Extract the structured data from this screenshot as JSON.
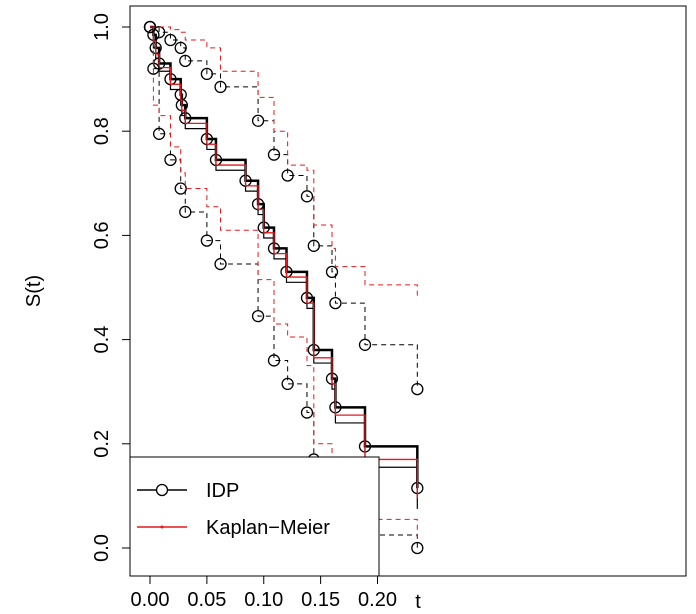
{
  "chart_data": {
    "type": "line",
    "xlabel": "t",
    "ylabel": "S(t)",
    "xlim": [
      0,
      0.235
    ],
    "ylim": [
      0,
      1
    ],
    "x_ticks": [
      "0.00",
      "0.05",
      "0.10",
      "0.15",
      "0.20"
    ],
    "x_tick_values": [
      0,
      0.05,
      0.1,
      0.15,
      0.2
    ],
    "y_ticks": [
      "0.0",
      "0.2",
      "0.4",
      "0.6",
      "0.8",
      "1.0"
    ],
    "y_tick_values": [
      0,
      0.2,
      0.4,
      0.6,
      0.8,
      1.0
    ],
    "legend": {
      "position": "bottom-left",
      "entries": [
        {
          "label": "IDP",
          "color": "#000000",
          "marker": "circle"
        },
        {
          "label": "Kaplan−Meier",
          "color": "#e41a1c",
          "marker": "none"
        }
      ]
    },
    "series": [
      {
        "name": "IDP",
        "role": "estimate",
        "color": "#000000",
        "dashed": false,
        "width": 2.5,
        "markers": true,
        "x": [
          0,
          0.003,
          0.005,
          0.008,
          0.018,
          0.027,
          0.028,
          0.031,
          0.05,
          0.058,
          0.084,
          0.095,
          0.1,
          0.109,
          0.12,
          0.138,
          0.144,
          0.16,
          0.163,
          0.189,
          0.235
        ],
        "y": [
          1.0,
          0.985,
          0.96,
          0.93,
          0.9,
          0.87,
          0.85,
          0.825,
          0.785,
          0.745,
          0.705,
          0.66,
          0.615,
          0.575,
          0.53,
          0.48,
          0.38,
          0.325,
          0.27,
          0.195,
          0.115
        ]
      },
      {
        "name": "IDP",
        "role": "lower",
        "color": "#000000",
        "dashed": false,
        "width": 1.2,
        "markers": false,
        "x": [
          0,
          0.003,
          0.005,
          0.008,
          0.018,
          0.027,
          0.028,
          0.031,
          0.05,
          0.058,
          0.084,
          0.095,
          0.1,
          0.109,
          0.12,
          0.138,
          0.144,
          0.16,
          0.163,
          0.189,
          0.235
        ],
        "y": [
          1.0,
          0.96,
          0.94,
          0.915,
          0.88,
          0.85,
          0.83,
          0.805,
          0.765,
          0.725,
          0.685,
          0.64,
          0.595,
          0.555,
          0.51,
          0.46,
          0.355,
          0.305,
          0.24,
          0.155,
          0.075
        ]
      },
      {
        "name": "Kaplan−Meier",
        "role": "estimate",
        "color": "#e41a1c",
        "dashed": false,
        "width": 1.3,
        "markers": false,
        "x": [
          0,
          0.003,
          0.005,
          0.008,
          0.018,
          0.027,
          0.028,
          0.031,
          0.05,
          0.058,
          0.084,
          0.095,
          0.1,
          0.109,
          0.12,
          0.138,
          0.144,
          0.16,
          0.163,
          0.189,
          0.235
        ],
        "y": [
          1.0,
          0.973,
          0.948,
          0.922,
          0.89,
          0.86,
          0.84,
          0.815,
          0.775,
          0.735,
          0.695,
          0.65,
          0.605,
          0.565,
          0.52,
          0.47,
          0.365,
          0.315,
          0.255,
          0.17,
          0.095
        ]
      },
      {
        "name": "IDP",
        "role": "upper band",
        "color": "#000000",
        "dashed": true,
        "width": 1,
        "markers": true,
        "x": [
          0,
          0.008,
          0.018,
          0.027,
          0.031,
          0.05,
          0.062,
          0.095,
          0.109,
          0.121,
          0.138,
          0.144,
          0.16,
          0.163,
          0.189,
          0.235
        ],
        "y": [
          1.0,
          0.99,
          0.975,
          0.96,
          0.935,
          0.91,
          0.885,
          0.82,
          0.755,
          0.715,
          0.675,
          0.58,
          0.53,
          0.47,
          0.39,
          0.305
        ]
      },
      {
        "name": "IDP",
        "role": "lower band",
        "color": "#000000",
        "dashed": true,
        "width": 1,
        "markers": true,
        "x": [
          0,
          0.003,
          0.008,
          0.018,
          0.027,
          0.031,
          0.05,
          0.062,
          0.095,
          0.109,
          0.121,
          0.138,
          0.144,
          0.16,
          0.163,
          0.189,
          0.235
        ],
        "y": [
          1.0,
          0.92,
          0.795,
          0.745,
          0.69,
          0.645,
          0.59,
          0.545,
          0.445,
          0.36,
          0.315,
          0.26,
          0.17,
          0.13,
          0.08,
          0.025,
          0.0
        ]
      },
      {
        "name": "Kaplan−Meier",
        "role": "upper band",
        "color": "#e41a1c",
        "dashed": true,
        "width": 1,
        "markers": false,
        "x": [
          0,
          0.008,
          0.018,
          0.027,
          0.031,
          0.05,
          0.062,
          0.095,
          0.109,
          0.121,
          0.138,
          0.144,
          0.16,
          0.163,
          0.189,
          0.235
        ],
        "y": [
          1.0,
          1.0,
          0.995,
          0.99,
          0.975,
          0.96,
          0.915,
          0.865,
          0.8,
          0.735,
          0.725,
          0.62,
          0.575,
          0.54,
          0.505,
          0.48
        ]
      },
      {
        "name": "Kaplan−Meier",
        "role": "lower band",
        "color": "#e41a1c",
        "dashed": true,
        "width": 1,
        "markers": false,
        "x": [
          0,
          0.003,
          0.008,
          0.018,
          0.027,
          0.031,
          0.05,
          0.062,
          0.095,
          0.109,
          0.121,
          0.138,
          0.144,
          0.16,
          0.163,
          0.189,
          0.235
        ],
        "y": [
          1.0,
          0.85,
          0.83,
          0.77,
          0.72,
          0.69,
          0.655,
          0.61,
          0.515,
          0.43,
          0.405,
          0.35,
          0.2,
          0.155,
          0.115,
          0.055,
          0.02
        ]
      }
    ]
  }
}
